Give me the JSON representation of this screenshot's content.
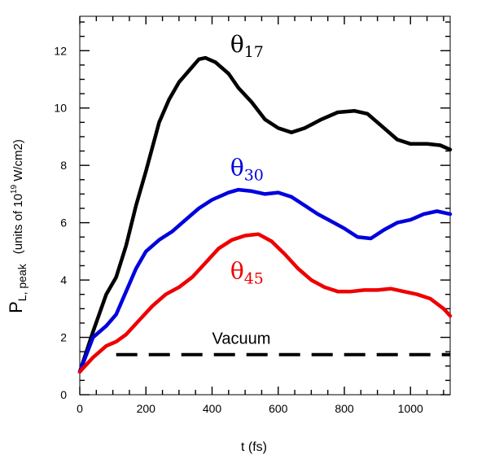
{
  "chart_data": {
    "type": "line",
    "xlabel": "t (fs)",
    "ylabel": {
      "main": "P",
      "main_sub": "L, peak",
      "units_prefix": "(units of 10",
      "units_exp": "19",
      "units_suffix": " W/cm2)"
    },
    "xlim": [
      0,
      1120
    ],
    "ylim": [
      0,
      13.2
    ],
    "x_ticks": [
      0,
      200,
      400,
      600,
      800,
      1000
    ],
    "y_ticks": [
      0,
      2,
      4,
      6,
      8,
      10,
      12
    ],
    "grid": false,
    "legend": "none",
    "series": [
      {
        "name": "θ17",
        "color": "#000000",
        "label": {
          "base": "θ",
          "sub": "17"
        },
        "points": [
          [
            0,
            0.8
          ],
          [
            40,
            2.2
          ],
          [
            80,
            3.5
          ],
          [
            110,
            4.1
          ],
          [
            140,
            5.2
          ],
          [
            170,
            6.6
          ],
          [
            200,
            7.8
          ],
          [
            240,
            9.5
          ],
          [
            270,
            10.3
          ],
          [
            300,
            10.9
          ],
          [
            330,
            11.3
          ],
          [
            360,
            11.7
          ],
          [
            380,
            11.75
          ],
          [
            410,
            11.6
          ],
          [
            450,
            11.2
          ],
          [
            480,
            10.7
          ],
          [
            520,
            10.2
          ],
          [
            560,
            9.6
          ],
          [
            600,
            9.3
          ],
          [
            640,
            9.15
          ],
          [
            680,
            9.3
          ],
          [
            730,
            9.6
          ],
          [
            780,
            9.85
          ],
          [
            830,
            9.9
          ],
          [
            870,
            9.8
          ],
          [
            920,
            9.3
          ],
          [
            960,
            8.9
          ],
          [
            1000,
            8.75
          ],
          [
            1050,
            8.75
          ],
          [
            1090,
            8.7
          ],
          [
            1120,
            8.55
          ]
        ]
      },
      {
        "name": "θ30",
        "color": "#0000dd",
        "label": {
          "base": "θ",
          "sub": "30"
        },
        "points": [
          [
            0,
            0.8
          ],
          [
            40,
            2.0
          ],
          [
            80,
            2.4
          ],
          [
            110,
            2.8
          ],
          [
            140,
            3.6
          ],
          [
            170,
            4.4
          ],
          [
            200,
            5.0
          ],
          [
            240,
            5.4
          ],
          [
            280,
            5.7
          ],
          [
            320,
            6.1
          ],
          [
            360,
            6.5
          ],
          [
            400,
            6.8
          ],
          [
            450,
            7.05
          ],
          [
            480,
            7.15
          ],
          [
            520,
            7.1
          ],
          [
            560,
            7.0
          ],
          [
            600,
            7.05
          ],
          [
            640,
            6.9
          ],
          [
            680,
            6.6
          ],
          [
            720,
            6.3
          ],
          [
            760,
            6.05
          ],
          [
            800,
            5.8
          ],
          [
            840,
            5.5
          ],
          [
            880,
            5.45
          ],
          [
            920,
            5.75
          ],
          [
            960,
            6.0
          ],
          [
            1000,
            6.1
          ],
          [
            1040,
            6.3
          ],
          [
            1080,
            6.4
          ],
          [
            1120,
            6.3
          ]
        ]
      },
      {
        "name": "θ45",
        "color": "#ee0000",
        "label": {
          "base": "θ",
          "sub": "45"
        },
        "points": [
          [
            0,
            0.8
          ],
          [
            40,
            1.3
          ],
          [
            80,
            1.7
          ],
          [
            110,
            1.85
          ],
          [
            140,
            2.1
          ],
          [
            180,
            2.6
          ],
          [
            220,
            3.1
          ],
          [
            260,
            3.5
          ],
          [
            300,
            3.75
          ],
          [
            340,
            4.1
          ],
          [
            380,
            4.6
          ],
          [
            420,
            5.1
          ],
          [
            460,
            5.4
          ],
          [
            500,
            5.55
          ],
          [
            540,
            5.6
          ],
          [
            580,
            5.35
          ],
          [
            620,
            4.9
          ],
          [
            660,
            4.4
          ],
          [
            700,
            4.0
          ],
          [
            740,
            3.75
          ],
          [
            780,
            3.6
          ],
          [
            820,
            3.6
          ],
          [
            860,
            3.65
          ],
          [
            900,
            3.65
          ],
          [
            940,
            3.7
          ],
          [
            980,
            3.6
          ],
          [
            1020,
            3.5
          ],
          [
            1060,
            3.35
          ],
          [
            1100,
            3.0
          ],
          [
            1120,
            2.75
          ]
        ]
      },
      {
        "name": "Vacuum",
        "color": "#000000",
        "dashed": true,
        "points": [
          [
            110,
            1.4
          ],
          [
            1120,
            1.4
          ]
        ]
      }
    ],
    "annotations": [
      {
        "series": 0,
        "x": 455,
        "y": 11.95
      },
      {
        "series": 1,
        "x": 455,
        "y": 7.65
      },
      {
        "series": 2,
        "x": 455,
        "y": 4.05
      },
      {
        "text": "Vacuum",
        "x": 400,
        "y": 1.78
      }
    ]
  }
}
